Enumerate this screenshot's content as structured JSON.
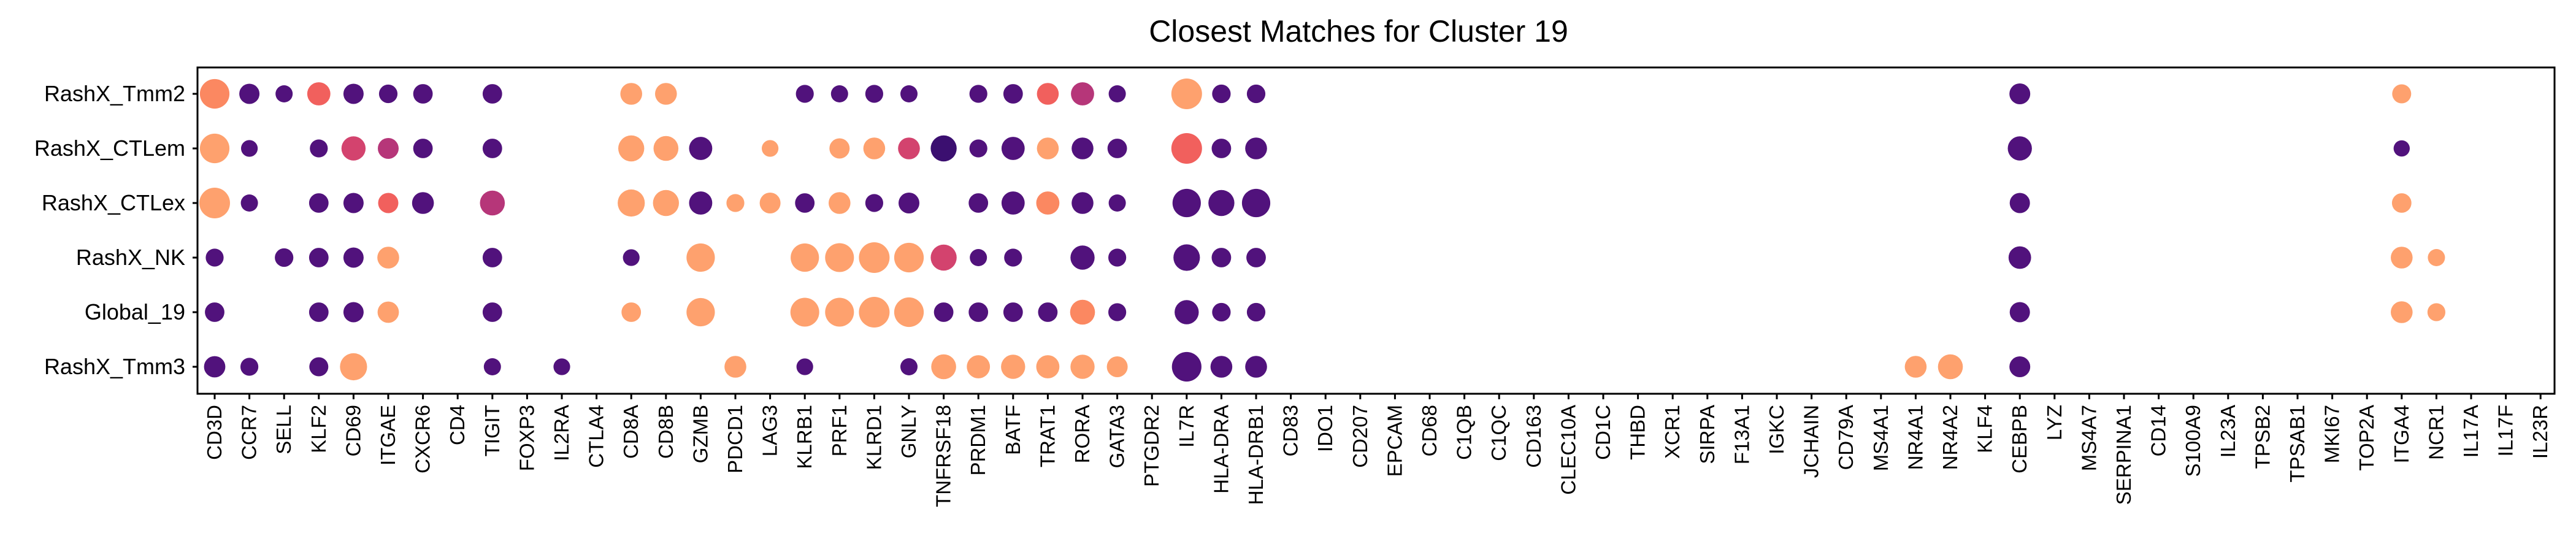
{
  "chart_data": {
    "type": "scatter",
    "title": "Closest Matches for Cluster 19",
    "xlabel": "",
    "ylabel": "",
    "legend": "none",
    "grid": false,
    "genes": [
      "CD3D",
      "CCR7",
      "SELL",
      "KLF2",
      "CD69",
      "ITGAE",
      "CXCR6",
      "CD4",
      "TIGIT",
      "FOXP3",
      "IL2RA",
      "CTLA4",
      "CD8A",
      "CD8B",
      "GZMB",
      "PDCD1",
      "LAG3",
      "KLRB1",
      "PRF1",
      "KLRD1",
      "GNLY",
      "TNFRSF18",
      "PRDM1",
      "BATF",
      "TRAT1",
      "RORA",
      "GATA3",
      "PTGDR2",
      "IL7R",
      "HLA-DRA",
      "HLA-DRB1",
      "CD83",
      "IDO1",
      "CD207",
      "EPCAM",
      "CD68",
      "C1QB",
      "C1QC",
      "CD163",
      "CLEC10A",
      "CD1C",
      "THBD",
      "XCR1",
      "SIRPA",
      "F13A1",
      "IGKC",
      "JCHAIN",
      "CD79A",
      "MS4A1",
      "NR4A1",
      "NR4A2",
      "KLF4",
      "CEBPB",
      "LYZ",
      "MS4A7",
      "SERPINA1",
      "CD14",
      "S100A9",
      "IL23A",
      "TPSB2",
      "TPSAB1",
      "MKI67",
      "TOP2A",
      "ITGA4",
      "NCR1",
      "IL17A",
      "IL17F",
      "IL23R"
    ],
    "groups": [
      "RashX_Tmm2",
      "RashX_CTLem",
      "RashX_CTLex",
      "RashX_NK",
      "Global_19",
      "RashX_Tmm3"
    ],
    "points": [
      {
        "group": "RashX_Tmm2",
        "gene": "CD3D",
        "size": 0.95,
        "color": "#FB8861"
      },
      {
        "group": "RashX_Tmm2",
        "gene": "CCR7",
        "size": 0.55,
        "color": "#51127C"
      },
      {
        "group": "RashX_Tmm2",
        "gene": "SELL",
        "size": 0.42,
        "color": "#51127C"
      },
      {
        "group": "RashX_Tmm2",
        "gene": "KLF2",
        "size": 0.68,
        "color": "#F1605D"
      },
      {
        "group": "RashX_Tmm2",
        "gene": "CD69",
        "size": 0.55,
        "color": "#51127C"
      },
      {
        "group": "RashX_Tmm2",
        "gene": "ITGAE",
        "size": 0.48,
        "color": "#51127C"
      },
      {
        "group": "RashX_Tmm2",
        "gene": "CXCR6",
        "size": 0.52,
        "color": "#51127C"
      },
      {
        "group": "RashX_Tmm2",
        "gene": "TIGIT",
        "size": 0.52,
        "color": "#51127C"
      },
      {
        "group": "RashX_Tmm2",
        "gene": "CD8A",
        "size": 0.62,
        "color": "#FEA16E"
      },
      {
        "group": "RashX_Tmm2",
        "gene": "CD8B",
        "size": 0.62,
        "color": "#FEA16E"
      },
      {
        "group": "RashX_Tmm2",
        "gene": "KLRB1",
        "size": 0.45,
        "color": "#51127C"
      },
      {
        "group": "RashX_Tmm2",
        "gene": "PRF1",
        "size": 0.42,
        "color": "#51127C"
      },
      {
        "group": "RashX_Tmm2",
        "gene": "KLRD1",
        "size": 0.45,
        "color": "#51127C"
      },
      {
        "group": "RashX_Tmm2",
        "gene": "GNLY",
        "size": 0.42,
        "color": "#51127C"
      },
      {
        "group": "RashX_Tmm2",
        "gene": "PRDM1",
        "size": 0.45,
        "color": "#51127C"
      },
      {
        "group": "RashX_Tmm2",
        "gene": "BATF",
        "size": 0.52,
        "color": "#51127C"
      },
      {
        "group": "RashX_Tmm2",
        "gene": "TRAT1",
        "size": 0.62,
        "color": "#F1605D"
      },
      {
        "group": "RashX_Tmm2",
        "gene": "RORA",
        "size": 0.68,
        "color": "#B63679"
      },
      {
        "group": "RashX_Tmm2",
        "gene": "GATA3",
        "size": 0.42,
        "color": "#51127C"
      },
      {
        "group": "RashX_Tmm2",
        "gene": "IL7R",
        "size": 1.0,
        "color": "#FEA16E"
      },
      {
        "group": "RashX_Tmm2",
        "gene": "HLA-DRA",
        "size": 0.48,
        "color": "#51127C"
      },
      {
        "group": "RashX_Tmm2",
        "gene": "HLA-DRB1",
        "size": 0.48,
        "color": "#51127C"
      },
      {
        "group": "RashX_Tmm2",
        "gene": "CEBPB",
        "size": 0.58,
        "color": "#51127C"
      },
      {
        "group": "RashX_Tmm2",
        "gene": "ITGA4",
        "size": 0.5,
        "color": "#FEA16E"
      },
      {
        "group": "RashX_CTLem",
        "gene": "CD3D",
        "size": 0.95,
        "color": "#FEA16E"
      },
      {
        "group": "RashX_CTLem",
        "gene": "CCR7",
        "size": 0.4,
        "color": "#51127C"
      },
      {
        "group": "RashX_CTLem",
        "gene": "KLF2",
        "size": 0.45,
        "color": "#51127C"
      },
      {
        "group": "RashX_CTLem",
        "gene": "CD69",
        "size": 0.72,
        "color": "#D3436E"
      },
      {
        "group": "RashX_CTLem",
        "gene": "ITGAE",
        "size": 0.58,
        "color": "#B63679"
      },
      {
        "group": "RashX_CTLem",
        "gene": "CXCR6",
        "size": 0.52,
        "color": "#51127C"
      },
      {
        "group": "RashX_CTLem",
        "gene": "TIGIT",
        "size": 0.52,
        "color": "#51127C"
      },
      {
        "group": "RashX_CTLem",
        "gene": "CD8A",
        "size": 0.8,
        "color": "#FEA16E"
      },
      {
        "group": "RashX_CTLem",
        "gene": "CD8B",
        "size": 0.75,
        "color": "#FEA16E"
      },
      {
        "group": "RashX_CTLem",
        "gene": "GZMB",
        "size": 0.68,
        "color": "#51127C"
      },
      {
        "group": "RashX_CTLem",
        "gene": "LAG3",
        "size": 0.4,
        "color": "#FEA16E"
      },
      {
        "group": "RashX_CTLem",
        "gene": "PRF1",
        "size": 0.55,
        "color": "#FEA16E"
      },
      {
        "group": "RashX_CTLem",
        "gene": "KLRD1",
        "size": 0.62,
        "color": "#FEA16E"
      },
      {
        "group": "RashX_CTLem",
        "gene": "GNLY",
        "size": 0.62,
        "color": "#D3436E"
      },
      {
        "group": "RashX_CTLem",
        "gene": "TNFRSF18",
        "size": 0.8,
        "color": "#3B0F70"
      },
      {
        "group": "RashX_CTLem",
        "gene": "PRDM1",
        "size": 0.45,
        "color": "#51127C"
      },
      {
        "group": "RashX_CTLem",
        "gene": "BATF",
        "size": 0.68,
        "color": "#51127C"
      },
      {
        "group": "RashX_CTLem",
        "gene": "TRAT1",
        "size": 0.62,
        "color": "#FEA16E"
      },
      {
        "group": "RashX_CTLem",
        "gene": "RORA",
        "size": 0.62,
        "color": "#51127C"
      },
      {
        "group": "RashX_CTLem",
        "gene": "GATA3",
        "size": 0.52,
        "color": "#51127C"
      },
      {
        "group": "RashX_CTLem",
        "gene": "IL7R",
        "size": 1.0,
        "color": "#F1605D"
      },
      {
        "group": "RashX_CTLem",
        "gene": "HLA-DRA",
        "size": 0.52,
        "color": "#51127C"
      },
      {
        "group": "RashX_CTLem",
        "gene": "HLA-DRB1",
        "size": 0.62,
        "color": "#51127C"
      },
      {
        "group": "RashX_CTLem",
        "gene": "CEBPB",
        "size": 0.72,
        "color": "#51127C"
      },
      {
        "group": "RashX_CTLem",
        "gene": "ITGA4",
        "size": 0.38,
        "color": "#51127C"
      },
      {
        "group": "RashX_CTLex",
        "gene": "CD3D",
        "size": 1.0,
        "color": "#FEA16E"
      },
      {
        "group": "RashX_CTLex",
        "gene": "CCR7",
        "size": 0.42,
        "color": "#51127C"
      },
      {
        "group": "RashX_CTLex",
        "gene": "KLF2",
        "size": 0.52,
        "color": "#51127C"
      },
      {
        "group": "RashX_CTLex",
        "gene": "CD69",
        "size": 0.55,
        "color": "#51127C"
      },
      {
        "group": "RashX_CTLex",
        "gene": "ITGAE",
        "size": 0.55,
        "color": "#F1605D"
      },
      {
        "group": "RashX_CTLex",
        "gene": "CXCR6",
        "size": 0.62,
        "color": "#51127C"
      },
      {
        "group": "RashX_CTLex",
        "gene": "TIGIT",
        "size": 0.75,
        "color": "#B63679"
      },
      {
        "group": "RashX_CTLex",
        "gene": "CD8A",
        "size": 0.85,
        "color": "#FEA16E"
      },
      {
        "group": "RashX_CTLex",
        "gene": "CD8B",
        "size": 0.8,
        "color": "#FEA16E"
      },
      {
        "group": "RashX_CTLex",
        "gene": "GZMB",
        "size": 0.68,
        "color": "#51127C"
      },
      {
        "group": "RashX_CTLex",
        "gene": "PDCD1",
        "size": 0.45,
        "color": "#FEA16E"
      },
      {
        "group": "RashX_CTLex",
        "gene": "LAG3",
        "size": 0.58,
        "color": "#FEA16E"
      },
      {
        "group": "RashX_CTLex",
        "gene": "KLRB1",
        "size": 0.52,
        "color": "#51127C"
      },
      {
        "group": "RashX_CTLex",
        "gene": "PRF1",
        "size": 0.62,
        "color": "#FEA16E"
      },
      {
        "group": "RashX_CTLex",
        "gene": "KLRD1",
        "size": 0.45,
        "color": "#51127C"
      },
      {
        "group": "RashX_CTLex",
        "gene": "GNLY",
        "size": 0.58,
        "color": "#51127C"
      },
      {
        "group": "RashX_CTLex",
        "gene": "PRDM1",
        "size": 0.52,
        "color": "#51127C"
      },
      {
        "group": "RashX_CTLex",
        "gene": "BATF",
        "size": 0.68,
        "color": "#51127C"
      },
      {
        "group": "RashX_CTLex",
        "gene": "TRAT1",
        "size": 0.68,
        "color": "#FB8861"
      },
      {
        "group": "RashX_CTLex",
        "gene": "RORA",
        "size": 0.62,
        "color": "#51127C"
      },
      {
        "group": "RashX_CTLex",
        "gene": "GATA3",
        "size": 0.42,
        "color": "#51127C"
      },
      {
        "group": "RashX_CTLex",
        "gene": "IL7R",
        "size": 0.9,
        "color": "#51127C"
      },
      {
        "group": "RashX_CTLex",
        "gene": "HLA-DRA",
        "size": 0.8,
        "color": "#51127C"
      },
      {
        "group": "RashX_CTLex",
        "gene": "HLA-DRB1",
        "size": 0.9,
        "color": "#51127C"
      },
      {
        "group": "RashX_CTLex",
        "gene": "CEBPB",
        "size": 0.55,
        "color": "#51127C"
      },
      {
        "group": "RashX_CTLex",
        "gene": "ITGA4",
        "size": 0.52,
        "color": "#FEA16E"
      },
      {
        "group": "RashX_NK",
        "gene": "CD3D",
        "size": 0.45,
        "color": "#51127C"
      },
      {
        "group": "RashX_NK",
        "gene": "SELL",
        "size": 0.48,
        "color": "#51127C"
      },
      {
        "group": "RashX_NK",
        "gene": "KLF2",
        "size": 0.52,
        "color": "#51127C"
      },
      {
        "group": "RashX_NK",
        "gene": "CD69",
        "size": 0.55,
        "color": "#51127C"
      },
      {
        "group": "RashX_NK",
        "gene": "ITGAE",
        "size": 0.62,
        "color": "#FEA16E"
      },
      {
        "group": "RashX_NK",
        "gene": "TIGIT",
        "size": 0.52,
        "color": "#51127C"
      },
      {
        "group": "RashX_NK",
        "gene": "CD8A",
        "size": 0.4,
        "color": "#51127C"
      },
      {
        "group": "RashX_NK",
        "gene": "GZMB",
        "size": 0.9,
        "color": "#FEA16E"
      },
      {
        "group": "RashX_NK",
        "gene": "KLRB1",
        "size": 0.9,
        "color": "#FEA16E"
      },
      {
        "group": "RashX_NK",
        "gene": "PRF1",
        "size": 0.92,
        "color": "#FEA16E"
      },
      {
        "group": "RashX_NK",
        "gene": "KLRD1",
        "size": 1.0,
        "color": "#FEA16E"
      },
      {
        "group": "RashX_NK",
        "gene": "GNLY",
        "size": 0.95,
        "color": "#FEA16E"
      },
      {
        "group": "RashX_NK",
        "gene": "TNFRSF18",
        "size": 0.8,
        "color": "#D3436E"
      },
      {
        "group": "RashX_NK",
        "gene": "PRDM1",
        "size": 0.42,
        "color": "#51127C"
      },
      {
        "group": "RashX_NK",
        "gene": "BATF",
        "size": 0.45,
        "color": "#51127C"
      },
      {
        "group": "RashX_NK",
        "gene": "RORA",
        "size": 0.72,
        "color": "#51127C"
      },
      {
        "group": "RashX_NK",
        "gene": "GATA3",
        "size": 0.45,
        "color": "#51127C"
      },
      {
        "group": "RashX_NK",
        "gene": "IL7R",
        "size": 0.82,
        "color": "#51127C"
      },
      {
        "group": "RashX_NK",
        "gene": "HLA-DRA",
        "size": 0.52,
        "color": "#51127C"
      },
      {
        "group": "RashX_NK",
        "gene": "HLA-DRB1",
        "size": 0.52,
        "color": "#51127C"
      },
      {
        "group": "RashX_NK",
        "gene": "CEBPB",
        "size": 0.65,
        "color": "#51127C"
      },
      {
        "group": "RashX_NK",
        "gene": "ITGA4",
        "size": 0.62,
        "color": "#FEA16E"
      },
      {
        "group": "RashX_NK",
        "gene": "NCR1",
        "size": 0.42,
        "color": "#FEA16E"
      },
      {
        "group": "Global_19",
        "gene": "CD3D",
        "size": 0.52,
        "color": "#51127C"
      },
      {
        "group": "Global_19",
        "gene": "KLF2",
        "size": 0.52,
        "color": "#51127C"
      },
      {
        "group": "Global_19",
        "gene": "CD69",
        "size": 0.55,
        "color": "#51127C"
      },
      {
        "group": "Global_19",
        "gene": "ITGAE",
        "size": 0.6,
        "color": "#FEA16E"
      },
      {
        "group": "Global_19",
        "gene": "TIGIT",
        "size": 0.52,
        "color": "#51127C"
      },
      {
        "group": "Global_19",
        "gene": "CD8A",
        "size": 0.52,
        "color": "#FEA16E"
      },
      {
        "group": "Global_19",
        "gene": "GZMB",
        "size": 0.9,
        "color": "#FEA16E"
      },
      {
        "group": "Global_19",
        "gene": "KLRB1",
        "size": 0.92,
        "color": "#FEA16E"
      },
      {
        "group": "Global_19",
        "gene": "PRF1",
        "size": 0.92,
        "color": "#FEA16E"
      },
      {
        "group": "Global_19",
        "gene": "KLRD1",
        "size": 1.0,
        "color": "#FEA16E"
      },
      {
        "group": "Global_19",
        "gene": "GNLY",
        "size": 0.95,
        "color": "#FEA16E"
      },
      {
        "group": "Global_19",
        "gene": "TNFRSF18",
        "size": 0.52,
        "color": "#51127C"
      },
      {
        "group": "Global_19",
        "gene": "PRDM1",
        "size": 0.52,
        "color": "#51127C"
      },
      {
        "group": "Global_19",
        "gene": "BATF",
        "size": 0.52,
        "color": "#51127C"
      },
      {
        "group": "Global_19",
        "gene": "TRAT1",
        "size": 0.52,
        "color": "#51127C"
      },
      {
        "group": "Global_19",
        "gene": "RORA",
        "size": 0.75,
        "color": "#FB8861"
      },
      {
        "group": "Global_19",
        "gene": "GATA3",
        "size": 0.45,
        "color": "#51127C"
      },
      {
        "group": "Global_19",
        "gene": "IL7R",
        "size": 0.72,
        "color": "#51127C"
      },
      {
        "group": "Global_19",
        "gene": "HLA-DRA",
        "size": 0.48,
        "color": "#51127C"
      },
      {
        "group": "Global_19",
        "gene": "HLA-DRB1",
        "size": 0.48,
        "color": "#51127C"
      },
      {
        "group": "Global_19",
        "gene": "CEBPB",
        "size": 0.55,
        "color": "#51127C"
      },
      {
        "group": "Global_19",
        "gene": "ITGA4",
        "size": 0.62,
        "color": "#FEA16E"
      },
      {
        "group": "Global_19",
        "gene": "NCR1",
        "size": 0.45,
        "color": "#FEA16E"
      },
      {
        "group": "RashX_Tmm3",
        "gene": "CD3D",
        "size": 0.6,
        "color": "#51127C"
      },
      {
        "group": "RashX_Tmm3",
        "gene": "CCR7",
        "size": 0.45,
        "color": "#51127C"
      },
      {
        "group": "RashX_Tmm3",
        "gene": "KLF2",
        "size": 0.5,
        "color": "#51127C"
      },
      {
        "group": "RashX_Tmm3",
        "gene": "CD69",
        "size": 0.85,
        "color": "#FEA16E"
      },
      {
        "group": "RashX_Tmm3",
        "gene": "TIGIT",
        "size": 0.42,
        "color": "#51127C"
      },
      {
        "group": "RashX_Tmm3",
        "gene": "IL2RA",
        "size": 0.4,
        "color": "#51127C"
      },
      {
        "group": "RashX_Tmm3",
        "gene": "PDCD1",
        "size": 0.62,
        "color": "#FEA16E"
      },
      {
        "group": "RashX_Tmm3",
        "gene": "KLRB1",
        "size": 0.4,
        "color": "#51127C"
      },
      {
        "group": "RashX_Tmm3",
        "gene": "GNLY",
        "size": 0.42,
        "color": "#51127C"
      },
      {
        "group": "RashX_Tmm3",
        "gene": "TNFRSF18",
        "size": 0.75,
        "color": "#FEA16E"
      },
      {
        "group": "RashX_Tmm3",
        "gene": "PRDM1",
        "size": 0.68,
        "color": "#FEA16E"
      },
      {
        "group": "RashX_Tmm3",
        "gene": "BATF",
        "size": 0.72,
        "color": "#FEA16E"
      },
      {
        "group": "RashX_Tmm3",
        "gene": "TRAT1",
        "size": 0.68,
        "color": "#FEA16E"
      },
      {
        "group": "RashX_Tmm3",
        "gene": "RORA",
        "size": 0.72,
        "color": "#FEA16E"
      },
      {
        "group": "RashX_Tmm3",
        "gene": "GATA3",
        "size": 0.58,
        "color": "#FEA16E"
      },
      {
        "group": "RashX_Tmm3",
        "gene": "IL7R",
        "size": 0.95,
        "color": "#51127C"
      },
      {
        "group": "RashX_Tmm3",
        "gene": "HLA-DRA",
        "size": 0.62,
        "color": "#51127C"
      },
      {
        "group": "RashX_Tmm3",
        "gene": "HLA-DRB1",
        "size": 0.62,
        "color": "#51127C"
      },
      {
        "group": "RashX_Tmm3",
        "gene": "NR4A1",
        "size": 0.62,
        "color": "#FEA16E"
      },
      {
        "group": "RashX_Tmm3",
        "gene": "NR4A2",
        "size": 0.75,
        "color": "#FEA16E"
      },
      {
        "group": "RashX_Tmm3",
        "gene": "CEBPB",
        "size": 0.58,
        "color": "#51127C"
      }
    ]
  }
}
